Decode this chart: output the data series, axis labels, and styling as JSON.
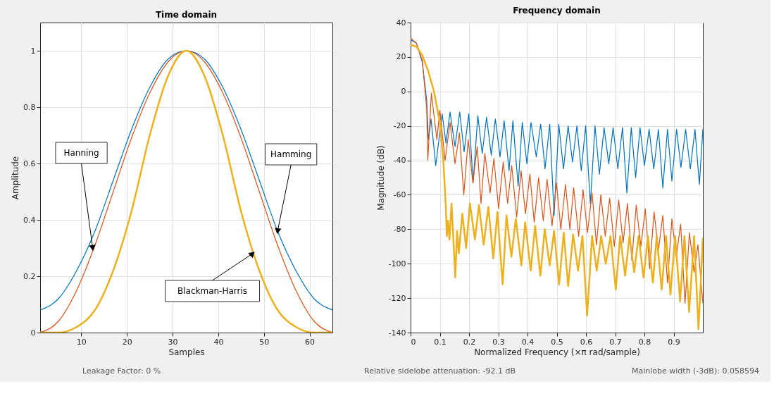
{
  "chart_data": [
    {
      "type": "line",
      "title": "Time domain",
      "xlabel": "Samples",
      "ylabel": "Amplitude",
      "xlim": [
        1,
        65
      ],
      "xticks": [
        10,
        20,
        30,
        40,
        50,
        60
      ],
      "ylim": [
        0,
        1.1
      ],
      "yticks": [
        0,
        0.2,
        0.4,
        0.6,
        0.8,
        1
      ],
      "grid": true,
      "legend": false,
      "x": [
        1,
        5,
        9,
        13,
        17,
        21,
        25,
        29,
        33,
        37,
        41,
        45,
        49,
        53,
        57,
        61,
        65
      ],
      "series": [
        {
          "color": "#0072bd",
          "values": [
            0.08,
            0.12,
            0.22,
            0.36,
            0.54,
            0.72,
            0.87,
            0.97,
            1,
            0.97,
            0.87,
            0.72,
            0.54,
            0.36,
            0.22,
            0.12,
            0.08
          ]
        },
        {
          "color": "#d95319",
          "values": [
            0,
            0.04,
            0.15,
            0.31,
            0.5,
            0.69,
            0.85,
            0.96,
            1,
            0.96,
            0.85,
            0.69,
            0.5,
            0.31,
            0.15,
            0.04,
            0
          ]
        },
        {
          "color": "#edb120",
          "values": [
            0,
            0,
            0.02,
            0.08,
            0.22,
            0.43,
            0.7,
            0.91,
            1,
            0.91,
            0.7,
            0.43,
            0.22,
            0.08,
            0.02,
            0,
            0
          ]
        }
      ],
      "annotations": [
        {
          "text": "Hanning",
          "x": 12.5,
          "y": 0.3
        },
        {
          "text": "Hamming",
          "x": 53,
          "y": 0.36
        },
        {
          "text": "Blackman-Harris",
          "x": 47.5,
          "y": 0.28
        }
      ]
    },
    {
      "type": "line",
      "title": "Frequency domain",
      "xlabel": "Normalized Frequency  (×π rad/sample)",
      "ylabel": "Magnitude (dB)",
      "xlim": [
        0,
        1
      ],
      "xticks": [
        0,
        0.1,
        0.2,
        0.3,
        0.4,
        0.5,
        0.6,
        0.7,
        0.8,
        0.9
      ],
      "ylim": [
        -140,
        40
      ],
      "yticks": [
        -140,
        -120,
        -100,
        -80,
        -60,
        -40,
        -20,
        0,
        20,
        40
      ],
      "grid": true,
      "legend": false,
      "series": [
        {
          "color": "#0072bd",
          "x": [
            0,
            0.02,
            0.04,
            0.055,
            0.061,
            0.07,
            0.086,
            0.108,
            0.121,
            0.135,
            0.152,
            0.168,
            0.183,
            0.199,
            0.214,
            0.23,
            0.245,
            0.26,
            0.276,
            0.29,
            0.306,
            0.32,
            0.337,
            0.35,
            0.368,
            0.382,
            0.398,
            0.412,
            0.43,
            0.445,
            0.46,
            0.476,
            0.491,
            0.507,
            0.523,
            0.539,
            0.554,
            0.569,
            0.584,
            0.599,
            0.615,
            0.631,
            0.646,
            0.662,
            0.678,
            0.693,
            0.709,
            0.725,
            0.74,
            0.755,
            0.77,
            0.785,
            0.8,
            0.816,
            0.832,
            0.848,
            0.863,
            0.879,
            0.894,
            0.91,
            0.925,
            0.941,
            0.957,
            0.973,
            0.988,
            1.0
          ],
          "values": [
            30,
            28,
            17,
            -5,
            -28,
            -16,
            -43,
            -13,
            -30,
            -12,
            -32,
            -12,
            -35,
            -13,
            -53,
            -14,
            -36,
            -15,
            -37,
            -16,
            -38,
            -17,
            -46,
            -17,
            -55,
            -18,
            -42,
            -18,
            -38,
            -19,
            -45,
            -19,
            -72,
            -19,
            -45,
            -20,
            -41,
            -20,
            -46,
            -20,
            -65,
            -20,
            -48,
            -21,
            -42,
            -21,
            -45,
            -21,
            -59,
            -21,
            -50,
            -21,
            -43,
            -22,
            -45,
            -22,
            -56,
            -22,
            -52,
            -22,
            -44,
            -22,
            -45,
            -22,
            -54,
            -22
          ]
        },
        {
          "color": "#d95319",
          "x": [
            0,
            0.02,
            0.04,
            0.055,
            0.059,
            0.071,
            0.09,
            0.1,
            0.118,
            0.135,
            0.152,
            0.167,
            0.182,
            0.197,
            0.213,
            0.228,
            0.241,
            0.254,
            0.272,
            0.285,
            0.301,
            0.317,
            0.332,
            0.346,
            0.363,
            0.378,
            0.393,
            0.408,
            0.423,
            0.438,
            0.454,
            0.467,
            0.484,
            0.499,
            0.514,
            0.53,
            0.545,
            0.558,
            0.575,
            0.59,
            0.605,
            0.621,
            0.636,
            0.651,
            0.666,
            0.681,
            0.697,
            0.712,
            0.727,
            0.742,
            0.757,
            0.772,
            0.788,
            0.803,
            0.818,
            0.833,
            0.848,
            0.863,
            0.879,
            0.894,
            0.909,
            0.924,
            0.939,
            0.954,
            0.97,
            0.983,
            1.0
          ],
          "values": [
            31,
            28,
            18,
            -10,
            -40,
            -1,
            -28,
            -11,
            -40,
            -18,
            -42,
            -24,
            -60,
            -28,
            -53,
            -32,
            -65,
            -36,
            -59,
            -39,
            -68,
            -41,
            -65,
            -43,
            -73,
            -46,
            -71,
            -48,
            -76,
            -50,
            -75,
            -51,
            -78,
            -53,
            -80,
            -54,
            -80,
            -56,
            -84,
            -57,
            -82,
            -59,
            -89,
            -60,
            -84,
            -62,
            -90,
            -63,
            -88,
            -65,
            -98,
            -66,
            -90,
            -68,
            -103,
            -70,
            -92,
            -72,
            -111,
            -74,
            -96,
            -77,
            -123,
            -82,
            -105,
            -89,
            -123
          ]
        },
        {
          "color": "#edb120",
          "x": [
            0,
            0.02,
            0.04,
            0.06,
            0.08,
            0.1,
            0.112,
            0.12,
            0.124,
            0.128,
            0.133,
            0.14,
            0.153,
            0.159,
            0.165,
            0.177,
            0.19,
            0.203,
            0.22,
            0.234,
            0.25,
            0.266,
            0.283,
            0.297,
            0.315,
            0.328,
            0.345,
            0.36,
            0.379,
            0.392,
            0.411,
            0.426,
            0.444,
            0.459,
            0.476,
            0.491,
            0.508,
            0.524,
            0.539,
            0.556,
            0.573,
            0.588,
            0.604,
            0.621,
            0.637,
            0.652,
            0.668,
            0.684,
            0.702,
            0.717,
            0.734,
            0.749,
            0.765,
            0.78,
            0.797,
            0.812,
            0.829,
            0.842,
            0.859,
            0.874,
            0.889,
            0.905,
            0.922,
            0.937,
            0.953,
            0.97,
            0.985,
            1.0
          ],
          "values": [
            27,
            26,
            21,
            12,
            0,
            -18,
            -40,
            -65,
            -84,
            -75,
            -86,
            -65,
            -108,
            -81,
            -94,
            -71,
            -91,
            -65,
            -86,
            -66,
            -89,
            -67,
            -97,
            -70,
            -112,
            -72,
            -96,
            -74,
            -101,
            -76,
            -104,
            -78,
            -107,
            -80,
            -101,
            -81,
            -112,
            -82,
            -113,
            -83,
            -104,
            -84,
            -130,
            -84,
            -104,
            -84,
            -100,
            -84,
            -115,
            -84,
            -107,
            -84,
            -105,
            -84,
            -108,
            -84,
            -111,
            -84,
            -115,
            -84,
            -118,
            -84,
            -122,
            -84,
            -128,
            -84,
            -138,
            -85
          ]
        }
      ]
    },
    {
      "type": "other",
      "annotations": [
        "Leakage Factor: 0 %",
        "Relative sidelobe attenuation: -92.1 dB",
        "Mainlobe width (-3dB): 0.058594"
      ]
    }
  ]
}
